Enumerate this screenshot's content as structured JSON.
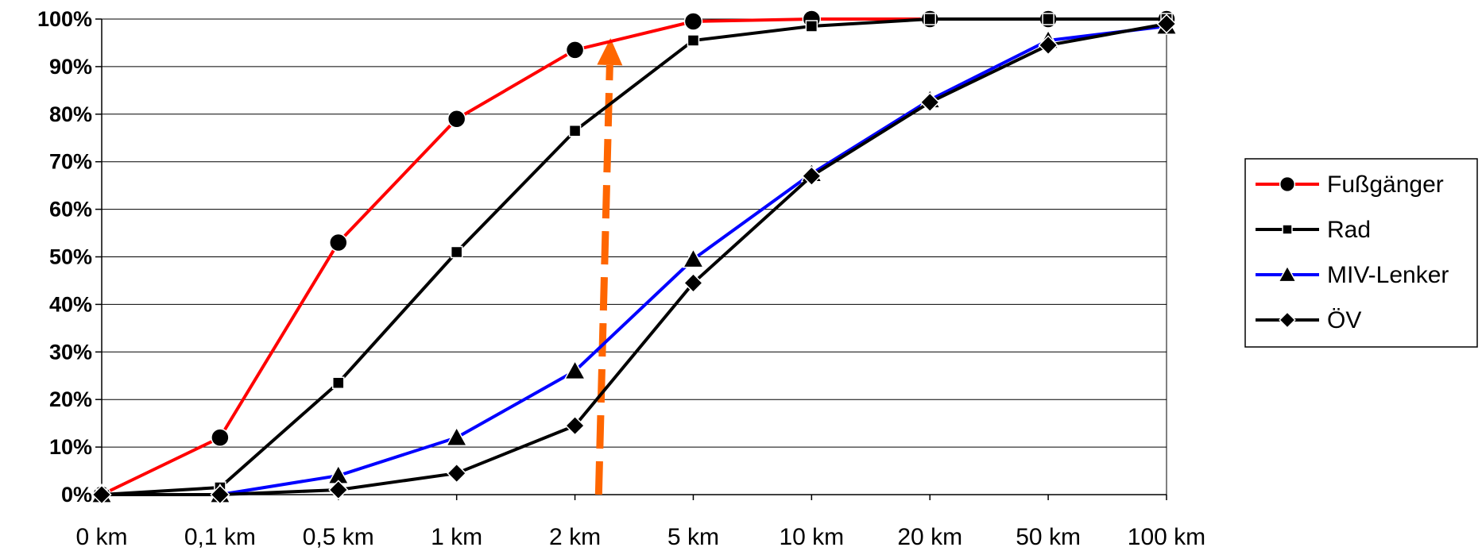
{
  "chart_data": {
    "type": "line",
    "categories": [
      "0 km",
      "0,1 km",
      "0,5 km",
      "1 km",
      "2 km",
      "5 km",
      "10 km",
      "20 km",
      "50 km",
      "100 km"
    ],
    "y_ticks": [
      "0%",
      "10%",
      "20%",
      "30%",
      "40%",
      "50%",
      "60%",
      "70%",
      "80%",
      "90%",
      "100%"
    ],
    "ylim": [
      0,
      100
    ],
    "grid": "horizontal",
    "legend_position": "right",
    "series": [
      {
        "name": "Fußgänger",
        "color": "#ff0000",
        "marker": "circle",
        "values": [
          0,
          12,
          53,
          79,
          93.5,
          99.5,
          100,
          100,
          100,
          100
        ]
      },
      {
        "name": "Rad",
        "color": "#000000",
        "marker": "square",
        "values": [
          0,
          1.5,
          23.5,
          51,
          76.5,
          95.5,
          98.5,
          100,
          100,
          100
        ]
      },
      {
        "name": "MIV-Lenker",
        "color": "#0000ff",
        "marker": "triangle",
        "values": [
          0,
          0,
          4,
          12,
          26,
          49.5,
          67.5,
          83,
          95.5,
          98.5
        ]
      },
      {
        "name": "ÖV",
        "color": "#000000",
        "marker": "diamond",
        "values": [
          0,
          0,
          1,
          4.5,
          14.5,
          44.5,
          67,
          82.5,
          94.5,
          99
        ]
      }
    ],
    "annotations": [
      {
        "type": "dashed-arrow",
        "color": "#ff6600",
        "x_from": 4.2,
        "y_from": 0,
        "x_to": 4.3,
        "y_to": 96
      }
    ]
  }
}
